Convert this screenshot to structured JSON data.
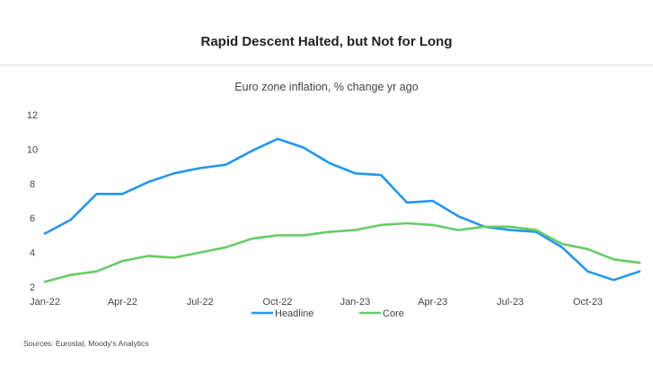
{
  "header": {
    "title": "Rapid Descent Halted, but Not for Long",
    "subtitle": "Euro zone inflation, % change yr ago"
  },
  "footer": {
    "source": "Sources: Eurostat, Moody's Analytics"
  },
  "colors": {
    "headline": "#2196f3",
    "core": "#66cc66"
  },
  "chart_data": {
    "type": "line",
    "title": "Euro zone inflation, % change yr ago",
    "ylim": [
      2,
      12
    ],
    "y_ticks": [
      2,
      4,
      6,
      8,
      10,
      12
    ],
    "x_tick_labels": [
      "Jan-22",
      "Apr-22",
      "Jul-22",
      "Oct-22",
      "Jan-23",
      "Apr-23",
      "Jul-23",
      "Oct-23"
    ],
    "x": [
      "Jan-22",
      "Feb-22",
      "Mar-22",
      "Apr-22",
      "May-22",
      "Jun-22",
      "Jul-22",
      "Aug-22",
      "Sep-22",
      "Oct-22",
      "Nov-22",
      "Dec-22",
      "Jan-23",
      "Feb-23",
      "Mar-23",
      "Apr-23",
      "May-23",
      "Jun-23",
      "Jul-23",
      "Aug-23",
      "Sep-23",
      "Oct-23",
      "Nov-23",
      "Dec-23"
    ],
    "legend_position": "bottom",
    "grid": false,
    "series": [
      {
        "name": "Headline",
        "color": "#2196f3",
        "values": [
          5.1,
          5.9,
          7.4,
          7.4,
          8.1,
          8.6,
          8.9,
          9.1,
          9.9,
          10.6,
          10.1,
          9.2,
          8.6,
          8.5,
          6.9,
          7.0,
          6.1,
          5.5,
          5.3,
          5.2,
          4.3,
          2.9,
          2.4,
          2.9
        ]
      },
      {
        "name": "Core",
        "color": "#66cc66",
        "values": [
          2.3,
          2.7,
          2.9,
          3.5,
          3.8,
          3.7,
          4.0,
          4.3,
          4.8,
          5.0,
          5.0,
          5.2,
          5.3,
          5.6,
          5.7,
          5.6,
          5.3,
          5.5,
          5.5,
          5.3,
          4.5,
          4.2,
          3.6,
          3.4
        ]
      }
    ]
  }
}
